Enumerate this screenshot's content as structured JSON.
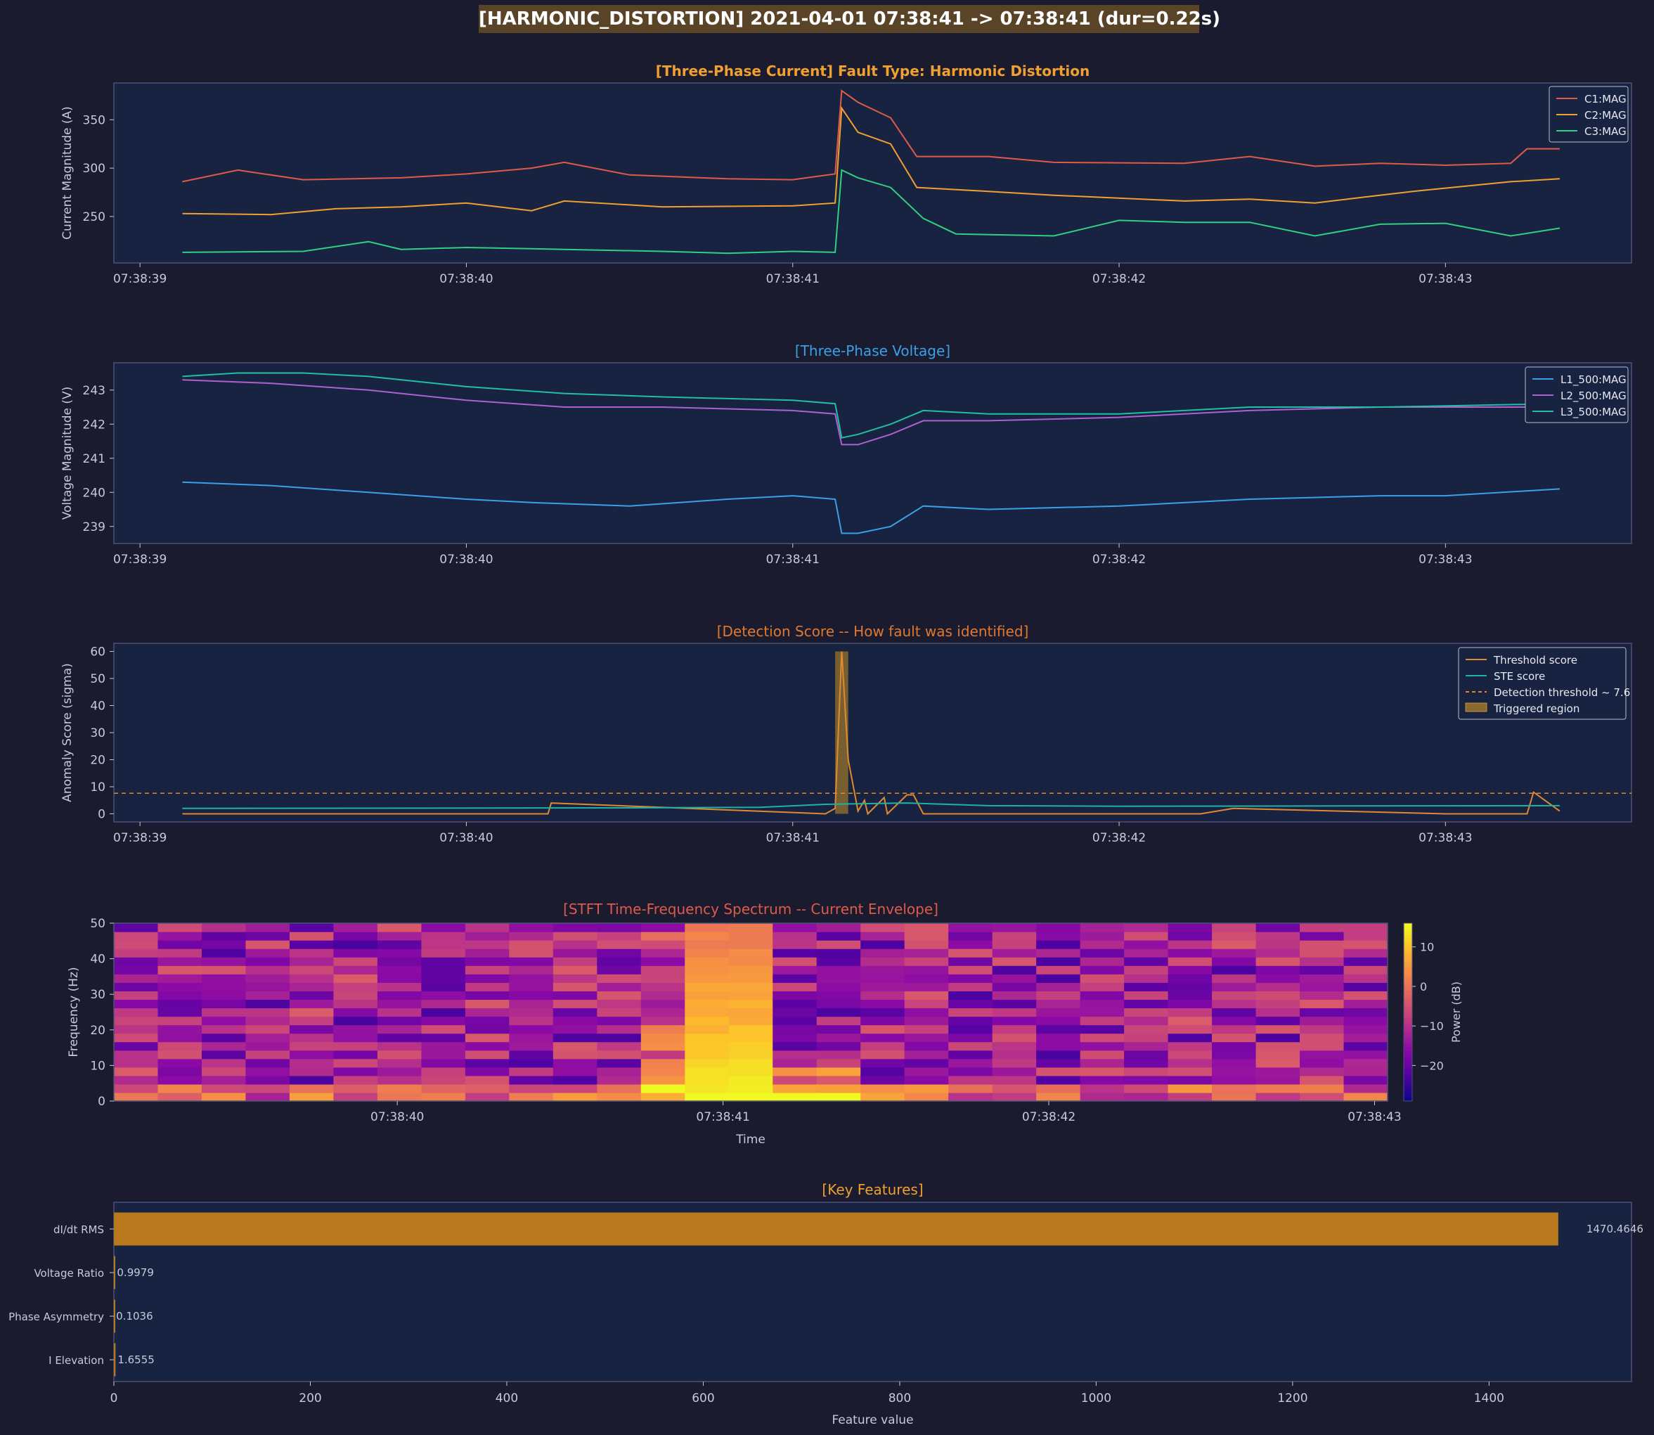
{
  "title": "[HARMONIC_DISTORTION]  2021-04-01 07:38:41 -> 07:38:41  (dur=0.22s)",
  "time_ticks": [
    "07:38:39",
    "07:38:40",
    "07:38:41",
    "07:38:42",
    "07:38:43"
  ],
  "stft_time_ticks": [
    "07:38:40",
    "07:38:41",
    "07:38:42",
    "07:38:43"
  ],
  "chart_data": [
    {
      "type": "line",
      "title": "[Three-Phase Current]  Fault Type: Harmonic Distortion",
      "title_color": "#f0a030",
      "ylabel": "Current Magnitude (A)",
      "yticks": [
        250,
        300,
        350
      ],
      "ylim": [
        202,
        388
      ],
      "xlim": [
        "07:38:38.92",
        "07:38:43.57"
      ],
      "legend": "top-right",
      "series": [
        {
          "name": "C1:MAG",
          "color": "#e05a4a",
          "x": [
            "07:38:39.13",
            "07:38:39.30",
            "07:38:39.50",
            "07:38:39.80",
            "07:38:40.00",
            "07:38:40.20",
            "07:38:40.30",
            "07:38:40.50",
            "07:38:40.80",
            "07:38:41.00",
            "07:38:41.13",
            "07:38:41.15",
            "07:38:41.20",
            "07:38:41.30",
            "07:38:41.38",
            "07:38:41.60",
            "07:38:41.80",
            "07:38:42.20",
            "07:38:42.40",
            "07:38:42.60",
            "07:38:42.80",
            "07:38:43.00",
            "07:38:43.20",
            "07:38:43.25",
            "07:38:43.35"
          ],
          "values": [
            286,
            298,
            288,
            290,
            294,
            300,
            306,
            293,
            289,
            288,
            294,
            380,
            368,
            352,
            312,
            312,
            306,
            305,
            312,
            302,
            305,
            303,
            305,
            320,
            320
          ]
        },
        {
          "name": "C2:MAG",
          "color": "#f0a030",
          "x": [
            "07:38:39.13",
            "07:38:39.40",
            "07:38:39.60",
            "07:38:39.80",
            "07:38:40.00",
            "07:38:40.20",
            "07:38:40.30",
            "07:38:40.60",
            "07:38:41.00",
            "07:38:41.13",
            "07:38:41.15",
            "07:38:41.20",
            "07:38:41.30",
            "07:38:41.38",
            "07:38:41.60",
            "07:38:41.80",
            "07:38:42.20",
            "07:38:42.40",
            "07:38:42.60",
            "07:38:42.75",
            "07:38:42.90",
            "07:38:43.20",
            "07:38:43.35"
          ],
          "values": [
            253,
            252,
            258,
            260,
            264,
            256,
            266,
            260,
            261,
            264,
            362,
            337,
            325,
            280,
            276,
            272,
            266,
            268,
            264,
            270,
            276,
            286,
            289
          ]
        },
        {
          "name": "C3:MAG",
          "color": "#30d080",
          "x": [
            "07:38:39.13",
            "07:38:39.50",
            "07:38:39.70",
            "07:38:39.80",
            "07:38:40.00",
            "07:38:40.30",
            "07:38:40.60",
            "07:38:40.80",
            "07:38:41.00",
            "07:38:41.13",
            "07:38:41.15",
            "07:38:41.20",
            "07:38:41.30",
            "07:38:41.40",
            "07:38:41.50",
            "07:38:41.80",
            "07:38:42.00",
            "07:38:42.20",
            "07:38:42.40",
            "07:38:42.60",
            "07:38:42.80",
            "07:38:43.00",
            "07:38:43.20",
            "07:38:43.35"
          ],
          "values": [
            213,
            214,
            224,
            216,
            218,
            216,
            214,
            212,
            214,
            213,
            298,
            290,
            280,
            248,
            232,
            230,
            246,
            244,
            244,
            230,
            242,
            243,
            230,
            238
          ]
        }
      ]
    },
    {
      "type": "line",
      "title": "[Three-Phase Voltage]",
      "title_color": "#3aa0e8",
      "ylabel": "Voltage Magnitude (V)",
      "yticks": [
        239,
        240,
        241,
        242,
        243
      ],
      "ylim": [
        238.5,
        243.8
      ],
      "legend": "top-right",
      "series": [
        {
          "name": "L1_500:MAG",
          "color": "#3aa0e8",
          "x": [
            "07:38:39.13",
            "07:38:39.40",
            "07:38:39.70",
            "07:38:40.00",
            "07:38:40.20",
            "07:38:40.50",
            "07:38:40.80",
            "07:38:41.00",
            "07:38:41.13",
            "07:38:41.15",
            "07:38:41.20",
            "07:38:41.30",
            "07:38:41.40",
            "07:38:41.60",
            "07:38:42.00",
            "07:38:42.40",
            "07:38:42.80",
            "07:38:43.00",
            "07:38:43.35"
          ],
          "values": [
            240.3,
            240.2,
            240.0,
            239.8,
            239.7,
            239.6,
            239.8,
            239.9,
            239.8,
            238.8,
            238.8,
            239.0,
            239.6,
            239.5,
            239.6,
            239.8,
            239.9,
            239.9,
            240.1
          ]
        },
        {
          "name": "L2_500:MAG",
          "color": "#b060d0",
          "x": [
            "07:38:39.13",
            "07:38:39.40",
            "07:38:39.70",
            "07:38:40.00",
            "07:38:40.30",
            "07:38:40.60",
            "07:38:41.00",
            "07:38:41.13",
            "07:38:41.15",
            "07:38:41.20",
            "07:38:41.30",
            "07:38:41.40",
            "07:38:41.60",
            "07:38:42.00",
            "07:38:42.40",
            "07:38:42.80",
            "07:38:43.35"
          ],
          "values": [
            243.3,
            243.2,
            243.0,
            242.7,
            242.5,
            242.5,
            242.4,
            242.3,
            241.4,
            241.4,
            241.7,
            242.1,
            242.1,
            242.2,
            242.4,
            242.5,
            242.5
          ]
        },
        {
          "name": "L3_500:MAG",
          "color": "#20c0a0",
          "x": [
            "07:38:39.13",
            "07:38:39.30",
            "07:38:39.50",
            "07:38:39.70",
            "07:38:40.00",
            "07:38:40.30",
            "07:38:40.60",
            "07:38:41.00",
            "07:38:41.13",
            "07:38:41.15",
            "07:38:41.20",
            "07:38:41.30",
            "07:38:41.40",
            "07:38:41.60",
            "07:38:42.00",
            "07:38:42.40",
            "07:38:42.80",
            "07:38:43.35"
          ],
          "values": [
            243.4,
            243.5,
            243.5,
            243.4,
            243.1,
            242.9,
            242.8,
            242.7,
            242.6,
            241.6,
            241.7,
            242.0,
            242.4,
            242.3,
            242.3,
            242.5,
            242.5,
            242.6
          ]
        }
      ]
    },
    {
      "type": "line",
      "title": "[Detection Score -- How fault was identified]",
      "title_color": "#e07830",
      "ylabel": "Anomaly Score (sigma)",
      "yticks": [
        0,
        10,
        20,
        30,
        40,
        50,
        60
      ],
      "ylim": [
        -3,
        63
      ],
      "legend": "top-right",
      "threshold": 7.6,
      "triggered_region": [
        "07:38:41.13",
        "07:38:41.17"
      ],
      "series": [
        {
          "name": "Threshold score",
          "color": "#e08a30",
          "x": [
            "07:38:39.13",
            "07:38:40.25",
            "07:38:40.26",
            "07:38:41.10",
            "07:38:41.13",
            "07:38:41.15",
            "07:38:41.17",
            "07:38:41.20",
            "07:38:41.22",
            "07:38:41.23",
            "07:38:41.28",
            "07:38:41.29",
            "07:38:41.35",
            "07:38:41.37",
            "07:38:41.40",
            "07:38:42.25",
            "07:38:42.35",
            "07:38:43.00",
            "07:38:43.25",
            "07:38:43.27",
            "07:38:43.35"
          ],
          "values": [
            0,
            0,
            4,
            0,
            2,
            60,
            20,
            1,
            5,
            0,
            6,
            0,
            7,
            7,
            0,
            0,
            2,
            0,
            0,
            8,
            1
          ]
        },
        {
          "name": "STE score",
          "color": "#20b0a8",
          "x": [
            "07:38:39.13",
            "07:38:40.50",
            "07:38:40.90",
            "07:38:41.10",
            "07:38:41.35",
            "07:38:41.60",
            "07:38:42.00",
            "07:38:43.35"
          ],
          "values": [
            2,
            2.2,
            2.4,
            3.5,
            4,
            3,
            2.8,
            3
          ]
        },
        {
          "name": "Detection threshold ~ 7.6",
          "color": "#e08a30",
          "style": "dashed"
        },
        {
          "name": "Triggered region",
          "color": "#8a6a30",
          "style": "area"
        }
      ]
    },
    {
      "type": "heatmap",
      "title": "[STFT Time-Frequency Spectrum -- Current Envelope]",
      "title_color": "#e05a4a",
      "xlabel": "Time",
      "ylabel": "Frequency (Hz)",
      "yticks": [
        0,
        10,
        20,
        30,
        40,
        50
      ],
      "colorbar_label": "Power (dB)",
      "colorbar_ticks": [
        10,
        0,
        -10,
        -20
      ],
      "zlim": [
        -29,
        16
      ],
      "columns": 29,
      "rows": 21
    },
    {
      "type": "bar",
      "orientation": "horizontal",
      "title": "[Key Features]",
      "title_color": "#f0a030",
      "xlabel": "Feature value",
      "xticks": [
        0,
        200,
        400,
        600,
        800,
        1000,
        1200,
        1400
      ],
      "xlim": [
        0,
        1545
      ],
      "bar_color": "#b8781e",
      "categories": [
        "dI/dt RMS",
        "Voltage Ratio",
        "Phase Asymmetry",
        "I Elevation"
      ],
      "values": [
        1470.4646,
        0.9979,
        0.1036,
        1.6555
      ],
      "value_labels": [
        "1470.4646",
        "0.9979",
        "0.1036",
        "1.6555"
      ]
    }
  ]
}
